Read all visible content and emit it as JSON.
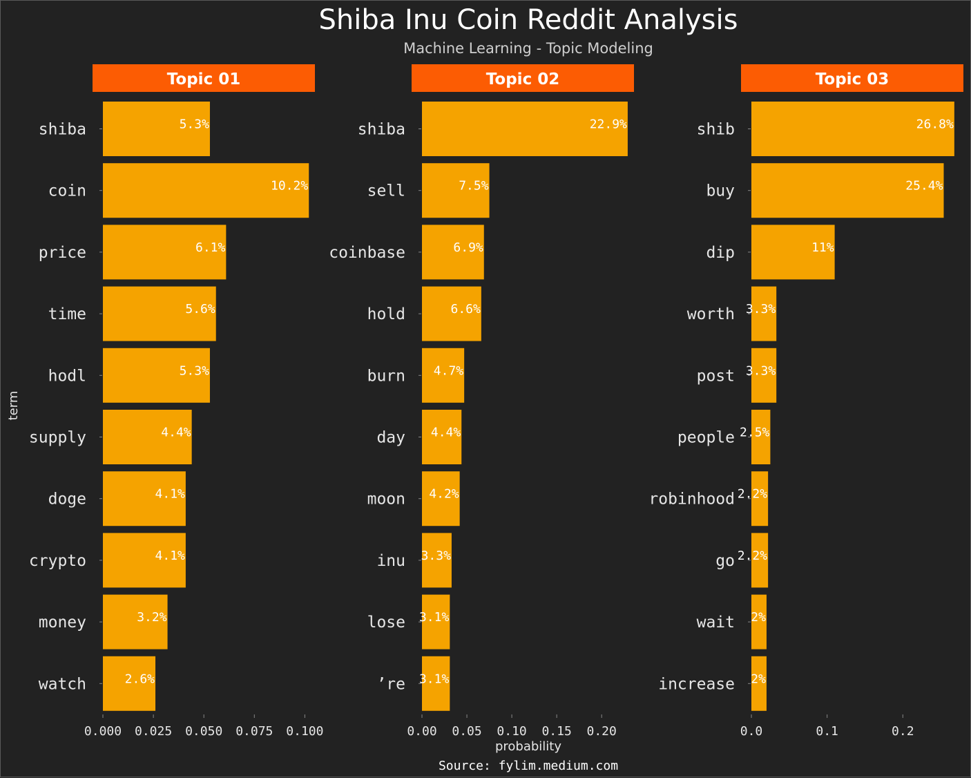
{
  "title": "Shiba Inu Coin Reddit Analysis",
  "subtitle": "Machine Learning - Topic Modeling",
  "caption": "Source: fylim.medium.com",
  "colors": {
    "background": "#222222",
    "strip": "#fc5c03",
    "bar": "#f5a300",
    "text": "#ffffff"
  },
  "chart_data": [
    {
      "type": "bar",
      "orientation": "horizontal",
      "title": "Topic 01",
      "xlabel": "probability",
      "ylabel": "term",
      "xlim": [
        0,
        0.105
      ],
      "xticks": [
        "0.000",
        "0.025",
        "0.050",
        "0.075",
        "0.100"
      ],
      "categories": [
        "shiba",
        "coin",
        "price",
        "time",
        "hodl",
        "supply",
        "doge",
        "crypto",
        "money",
        "watch"
      ],
      "values": [
        0.053,
        0.102,
        0.061,
        0.056,
        0.053,
        0.044,
        0.041,
        0.041,
        0.032,
        0.026
      ],
      "labels": [
        "5.3%",
        "10.2%",
        "6.1%",
        "5.6%",
        "5.3%",
        "4.4%",
        "4.1%",
        "4.1%",
        "3.2%",
        "2.6%"
      ]
    },
    {
      "type": "bar",
      "orientation": "horizontal",
      "title": "Topic 02",
      "xlabel": "probability",
      "ylabel": "term",
      "xlim": [
        0,
        0.236
      ],
      "xticks": [
        "0.00",
        "0.05",
        "0.10",
        "0.15",
        "0.20"
      ],
      "categories": [
        "shiba",
        "sell",
        "coinbase",
        "hold",
        "burn",
        "day",
        "moon",
        "inu",
        "lose",
        "’re"
      ],
      "values": [
        0.229,
        0.075,
        0.069,
        0.066,
        0.047,
        0.044,
        0.042,
        0.033,
        0.031,
        0.031
      ],
      "labels": [
        "22.9%",
        "7.5%",
        "6.9%",
        "6.6%",
        "4.7%",
        "4.4%",
        "4.2%",
        "3.3%",
        "3.1%",
        "3.1%"
      ]
    },
    {
      "type": "bar",
      "orientation": "horizontal",
      "title": "Topic 03",
      "xlabel": "probability",
      "ylabel": "term",
      "xlim": [
        0,
        0.28
      ],
      "xticks": [
        "0.0",
        "0.1",
        "0.2"
      ],
      "categories": [
        "shib",
        "buy",
        "dip",
        "worth",
        "post",
        "people",
        "robinhood",
        "go",
        "wait",
        "increase"
      ],
      "values": [
        0.268,
        0.254,
        0.11,
        0.033,
        0.033,
        0.025,
        0.022,
        0.022,
        0.02,
        0.02
      ],
      "labels": [
        "26.8%",
        "25.4%",
        "11%",
        "3.3%",
        "3.3%",
        "2.5%",
        "2.2%",
        "2.2%",
        "2%",
        "2%"
      ]
    }
  ]
}
